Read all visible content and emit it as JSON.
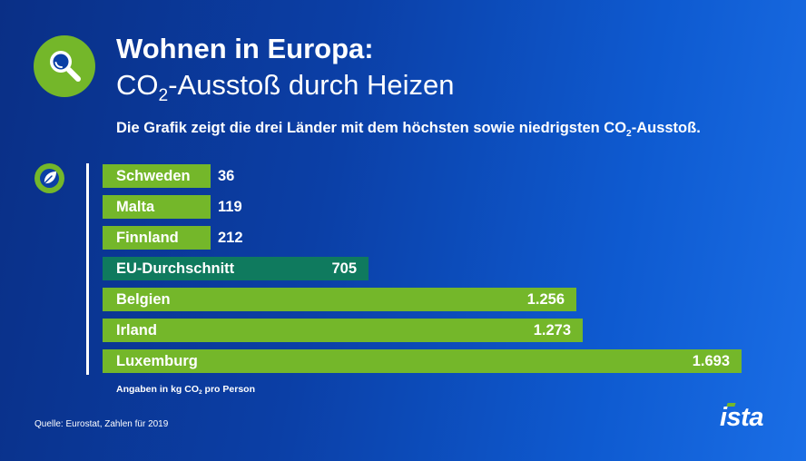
{
  "header": {
    "title_line1": "Wohnen in Europa:",
    "title_line2_pre": "CO",
    "title_line2_sub": "2",
    "title_line2_post": "-Ausstoß durch Heizen",
    "subtitle_pre": "Die Grafik zeigt die drei Länder mit dem höchsten sowie niedrigsten CO",
    "subtitle_sub": "2",
    "subtitle_post": "-Ausstoß."
  },
  "icons": {
    "header_icon": "magnifier-icon",
    "chart_icon": "leaf-icon"
  },
  "colors": {
    "accent_green": "#74b72a",
    "eu_bar": "#0f7a5e",
    "text": "#ffffff"
  },
  "chart_data": {
    "type": "bar",
    "orientation": "horizontal",
    "categories": [
      "Schweden",
      "Malta",
      "Finnland",
      "EU-Durchschnitt",
      "Belgien",
      "Irland",
      "Luxemburg"
    ],
    "values": [
      36,
      119,
      212,
      705,
      1256,
      1273,
      1693
    ],
    "value_labels": [
      "36",
      "119",
      "212",
      "705",
      "1.256",
      "1.273",
      "1.693"
    ],
    "highlight": "EU-Durchschnitt",
    "xlim": [
      0,
      1693
    ],
    "unit_note_pre": "Angaben in kg CO",
    "unit_note_sub": "2",
    "unit_note_post": " pro Person"
  },
  "footer": {
    "source": "Quelle: Eurostat, Zahlen für 2019",
    "logo_text": "ista"
  }
}
